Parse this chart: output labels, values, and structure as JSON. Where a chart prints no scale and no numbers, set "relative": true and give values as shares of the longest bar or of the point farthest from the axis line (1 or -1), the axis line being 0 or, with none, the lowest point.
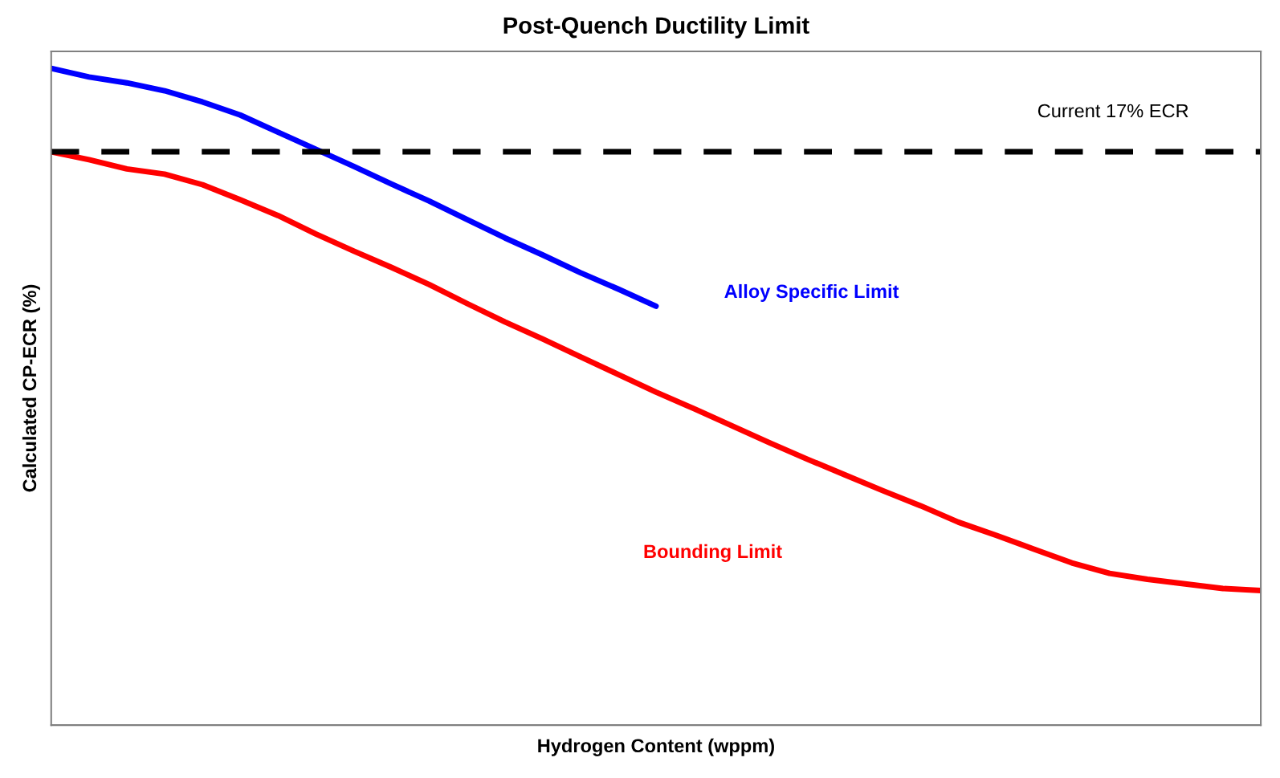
{
  "chart_data": {
    "type": "line",
    "title": "Post-Quench Ductility Limit",
    "xlabel": "Hydrogen Content (wppm)",
    "ylabel": "Calculated CP-ECR (%)",
    "relative": true,
    "tick_labels": false,
    "legend": false,
    "marker": "none",
    "line_style": "solid",
    "categories": [
      null,
      null,
      null,
      null,
      null,
      null,
      null,
      null,
      null,
      null,
      null,
      null,
      null,
      null,
      null,
      null,
      null,
      null,
      null,
      null,
      null,
      null,
      null,
      null,
      null,
      null,
      null,
      null,
      null,
      null,
      null,
      null,
      null
    ],
    "series": [
      {
        "name": "Alloy Specific Limit",
        "color": "#0000ff",
        "values": [
          1.0,
          0.987,
          0.978,
          0.966,
          0.949,
          0.929,
          0.903,
          0.877,
          0.851,
          0.824,
          0.798,
          0.77,
          0.742,
          0.716,
          0.689,
          0.664,
          0.638,
          null,
          null,
          null,
          null,
          null,
          null,
          null,
          null,
          null,
          null,
          null,
          null,
          null,
          null,
          null,
          null
        ]
      },
      {
        "name": "Bounding Limit",
        "color": "#ff0000",
        "values": [
          0.873,
          0.861,
          0.847,
          0.839,
          0.823,
          0.8,
          0.776,
          0.748,
          0.722,
          0.697,
          0.671,
          0.642,
          0.614,
          0.588,
          0.561,
          0.534,
          0.507,
          0.482,
          0.456,
          0.43,
          0.405,
          0.381,
          0.357,
          0.334,
          0.309,
          0.289,
          0.268,
          0.247,
          0.231,
          0.222,
          0.215,
          0.208,
          0.205
        ]
      }
    ],
    "ref_lines": [
      {
        "axis": "y",
        "value": 0.873,
        "label": "Current 17% ECR",
        "color": "#000000",
        "line_style": "dashed"
      }
    ]
  }
}
